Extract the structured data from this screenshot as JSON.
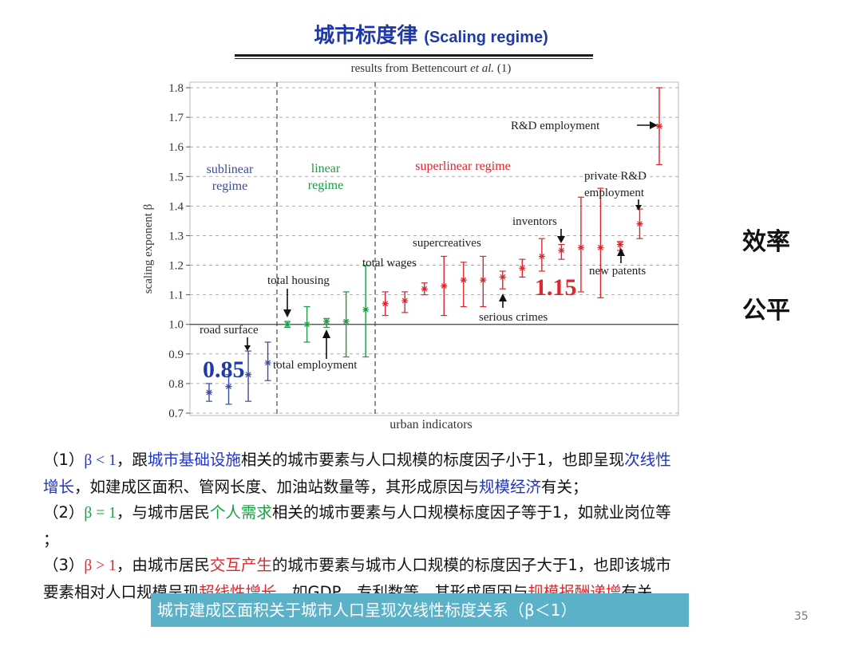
{
  "slide": {
    "title_zh": "城市标度律",
    "title_en": "(Scaling regime)",
    "source_prefix": "results from Bettencourt",
    "source_italic": "et al.",
    "source_suffix": "(1)",
    "page_number": "35"
  },
  "side_labels": {
    "efficiency": "效率",
    "fairness": "公平"
  },
  "chart_data": {
    "type": "scatter",
    "ylabel": "scaling exponent β",
    "xlabel": "urban indicators",
    "ylim": [
      0.7,
      1.8
    ],
    "yticks": [
      "0.7",
      "0.8",
      "0.9",
      "1.0",
      "1.1",
      "1.2",
      "1.3",
      "1.4",
      "1.5",
      "1.6",
      "1.7",
      "1.8"
    ],
    "reference_line": 1.0,
    "regimes": [
      {
        "label_line1": "sublinear",
        "label_line2": "regime",
        "color": "#3a4d9a"
      },
      {
        "label_line1": "linear",
        "label_line2": "regime",
        "color": "#1f9a44"
      },
      {
        "label_line1": "superlinear regime",
        "label_line2": "",
        "color": "#d9262c"
      }
    ],
    "points": [
      {
        "y": 0.77,
        "low": 0.74,
        "high": 0.8,
        "color": "#3a4d9a"
      },
      {
        "y": 0.79,
        "low": 0.73,
        "high": 0.83,
        "color": "#3a4d9a"
      },
      {
        "y": 0.83,
        "low": 0.74,
        "high": 0.91,
        "color": "#3a4d9a"
      },
      {
        "y": 0.87,
        "low": 0.81,
        "high": 0.94,
        "color": "#3a4d9a"
      },
      {
        "y": 1.0,
        "low": 0.99,
        "high": 1.01,
        "color": "#1f9a44"
      },
      {
        "y": 1.0,
        "low": 0.94,
        "high": 1.06,
        "color": "#1f9a44"
      },
      {
        "y": 1.01,
        "low": 0.99,
        "high": 1.02,
        "color": "#1f9a44"
      },
      {
        "y": 1.01,
        "low": 0.89,
        "high": 1.11,
        "color": "#1f9a44"
      },
      {
        "y": 1.05,
        "low": 0.89,
        "high": 1.2,
        "color": "#1f9a44"
      },
      {
        "y": 1.07,
        "low": 1.03,
        "high": 1.11,
        "color": "#d9262c"
      },
      {
        "y": 1.08,
        "low": 1.04,
        "high": 1.11,
        "color": "#d9262c"
      },
      {
        "y": 1.12,
        "low": 1.1,
        "high": 1.14,
        "color": "#d9262c"
      },
      {
        "y": 1.13,
        "low": 1.03,
        "high": 1.23,
        "color": "#d9262c"
      },
      {
        "y": 1.15,
        "low": 1.06,
        "high": 1.21,
        "color": "#d9262c"
      },
      {
        "y": 1.15,
        "low": 1.06,
        "high": 1.23,
        "color": "#d9262c"
      },
      {
        "y": 1.16,
        "low": 1.12,
        "high": 1.18,
        "color": "#d9262c"
      },
      {
        "y": 1.19,
        "low": 1.16,
        "high": 1.22,
        "color": "#d9262c"
      },
      {
        "y": 1.23,
        "low": 1.18,
        "high": 1.29,
        "color": "#d9262c"
      },
      {
        "y": 1.25,
        "low": 1.22,
        "high": 1.27,
        "color": "#d9262c"
      },
      {
        "y": 1.26,
        "low": 1.11,
        "high": 1.43,
        "color": "#d9262c"
      },
      {
        "y": 1.26,
        "low": 1.09,
        "high": 1.46,
        "color": "#d9262c"
      },
      {
        "y": 1.27,
        "low": 1.25,
        "high": 1.28,
        "color": "#d9262c"
      },
      {
        "y": 1.34,
        "low": 1.29,
        "high": 1.39,
        "color": "#d9262c"
      },
      {
        "y": 1.67,
        "low": 1.54,
        "high": 1.8,
        "color": "#d9262c"
      }
    ],
    "annotations": {
      "road_surface": "road surface",
      "total_housing": "total housing",
      "total_employment": "total employment",
      "total_wages": "total wages",
      "supercreatives": "supercreatives",
      "serious_crimes": "serious crimes",
      "inventors": "inventors",
      "new_patents": "new patents",
      "private_rd_line1": "private R&D",
      "private_rd_line2": "employment",
      "rd_employment": "R&D employment"
    },
    "highlight_low": "0.85",
    "highlight_high": "1.15"
  },
  "text": {
    "p1_a": "（1）",
    "p1_beta": "β < 1",
    "p1_b": "，跟",
    "p1_hl1": "城市基础设施",
    "p1_c": "相关的城市要素与人口规模的标度因子小于1，也即呈现",
    "p1_hl2": "次线性",
    "p1_hl3": "增长",
    "p1_d": "，如建成区面积、管网长度、加油站数量等，其形成原因与",
    "p1_hl4": "规模经济",
    "p1_e": "有关；",
    "p2_a": "（2）",
    "p2_beta": "β = 1",
    "p2_b": "，与城市居民",
    "p2_hl1": "个人需求",
    "p2_c": "相关的城市要素与人口规模标度因子等于1，如就业岗位等",
    "p2_d": "；",
    "p3_a": "（3）",
    "p3_beta": "β > 1",
    "p3_b": "，由城市居民",
    "p3_hl1": "交互产生",
    "p3_c": "的城市要素与城市人口规模的标度因子大于1，也即该城市",
    "p3_d": "要素相对人口规模呈现",
    "p3_hl2": "超线性增长",
    "p3_e": "，如GDP、专利数等，其形成原因与",
    "p3_hl3": "规模报酬递增",
    "p3_f": "有关."
  },
  "caption": "城市建成区面积关于城市人口呈现次线性标度关系（β＜1）"
}
